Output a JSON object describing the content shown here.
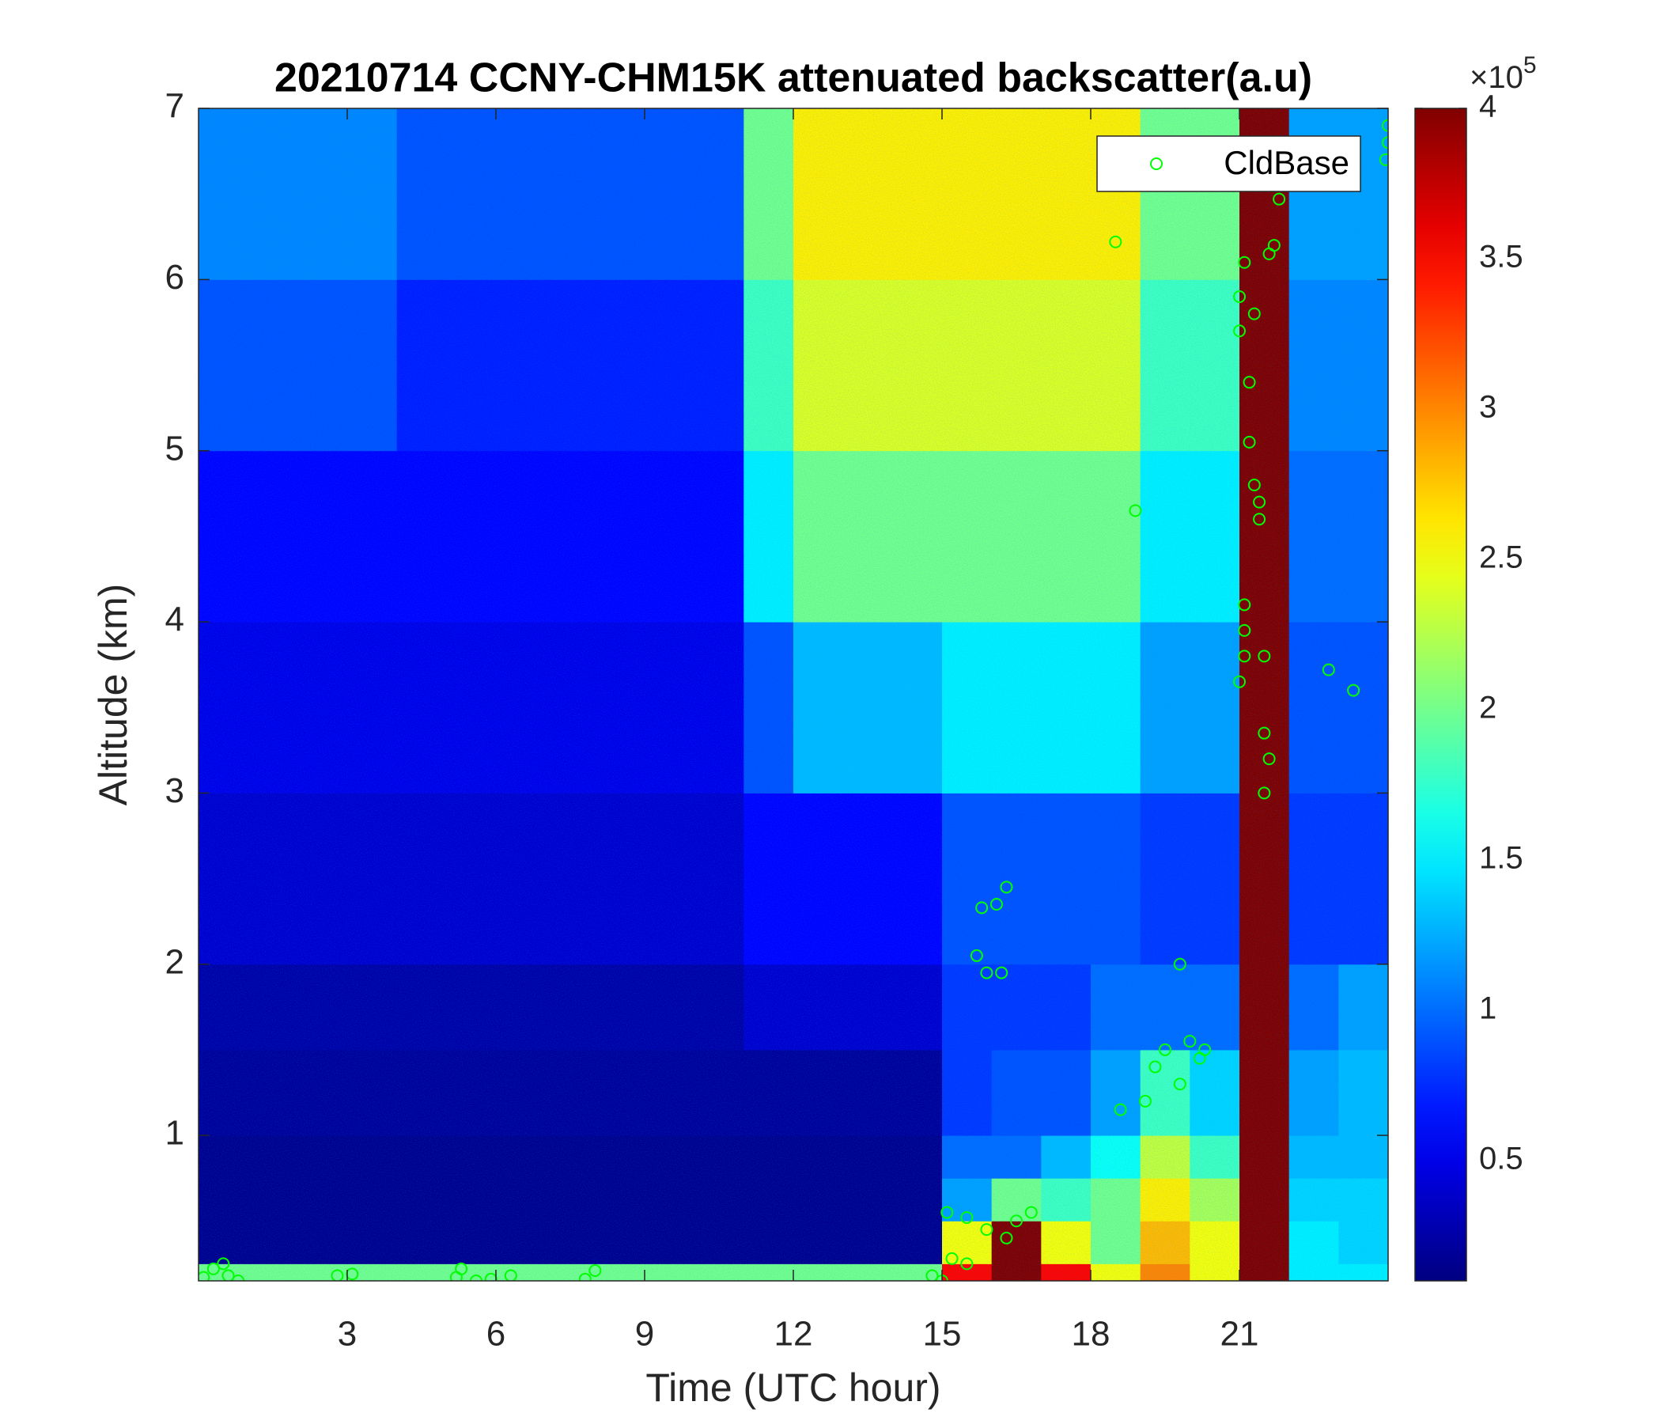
{
  "chart_data": {
    "type": "heatmap",
    "title": "20210714 CCNY-CHM15K attenuated backscatter(a.u)",
    "xlabel": "Time (UTC hour)",
    "ylabel": "Altitude (km)",
    "xlim": [
      0,
      24
    ],
    "xticks": [
      3,
      6,
      9,
      12,
      15,
      18,
      21
    ],
    "ylim": [
      0.15,
      7
    ],
    "yticks": [
      1,
      2,
      3,
      4,
      5,
      6,
      7
    ],
    "x_edges": [
      0,
      1,
      2,
      3,
      4,
      5,
      6,
      7,
      8,
      9,
      10,
      11,
      12,
      13,
      14,
      15,
      16,
      17,
      18,
      19,
      20,
      21,
      22,
      23,
      24
    ],
    "y_edges": [
      0.15,
      0.25,
      0.5,
      0.75,
      1,
      1.5,
      2,
      3,
      4,
      5,
      6,
      7
    ],
    "z": [
      [
        2,
        2,
        2,
        2,
        2,
        2,
        2,
        2,
        2,
        2,
        2,
        2,
        2,
        2,
        2,
        3.5,
        4,
        3.5,
        2.5,
        3,
        2.5,
        4,
        1.5,
        1.5
      ],
      [
        0.15,
        0.15,
        0.15,
        0.15,
        0.15,
        0.15,
        0.15,
        0.15,
        0.15,
        0.15,
        0.15,
        0.15,
        0.15,
        0.15,
        0.15,
        2.5,
        4,
        2.5,
        2,
        2.8,
        2.5,
        4,
        1.5,
        1.4
      ],
      [
        0.15,
        0.15,
        0.15,
        0.15,
        0.15,
        0.15,
        0.15,
        0.15,
        0.15,
        0.15,
        0.15,
        0.15,
        0.15,
        0.15,
        0.15,
        1.2,
        2,
        1.8,
        2,
        2.6,
        2.2,
        4,
        1.4,
        1.4
      ],
      [
        0.15,
        0.15,
        0.15,
        0.15,
        0.15,
        0.15,
        0.15,
        0.15,
        0.15,
        0.15,
        0.15,
        0.15,
        0.15,
        0.15,
        0.15,
        1,
        1,
        1.3,
        1.6,
        2.3,
        1.8,
        4,
        1.3,
        1.3
      ],
      [
        0.2,
        0.2,
        0.2,
        0.2,
        0.2,
        0.2,
        0.2,
        0.2,
        0.2,
        0.2,
        0.2,
        0.2,
        0.2,
        0.2,
        0.2,
        0.8,
        0.9,
        0.9,
        1.2,
        1.8,
        1.4,
        4,
        1.2,
        1.3
      ],
      [
        0.25,
        0.25,
        0.25,
        0.25,
        0.25,
        0.25,
        0.25,
        0.25,
        0.25,
        0.25,
        0.25,
        0.4,
        0.4,
        0.4,
        0.4,
        0.8,
        0.8,
        0.8,
        1,
        1,
        1,
        4,
        1,
        1.2
      ],
      [
        0.4,
        0.4,
        0.4,
        0.4,
        0.4,
        0.4,
        0.4,
        0.4,
        0.4,
        0.4,
        0.4,
        0.6,
        0.6,
        0.6,
        0.6,
        0.9,
        0.9,
        0.9,
        0.9,
        0.8,
        0.8,
        4,
        0.8,
        0.8
      ],
      [
        0.5,
        0.5,
        0.5,
        0.5,
        0.5,
        0.5,
        0.5,
        0.5,
        0.5,
        0.5,
        0.5,
        0.9,
        1.3,
        1.3,
        1.3,
        1.5,
        1.5,
        1.5,
        1.5,
        1.2,
        1.2,
        4,
        0.9,
        0.9
      ],
      [
        0.6,
        0.6,
        0.6,
        0.6,
        0.6,
        0.6,
        0.6,
        0.6,
        0.6,
        0.6,
        0.6,
        1.5,
        2,
        2,
        2,
        2,
        2,
        2,
        2,
        1.5,
        1.5,
        4,
        1,
        1
      ],
      [
        0.9,
        0.9,
        0.9,
        0.9,
        0.7,
        0.7,
        0.7,
        0.7,
        0.7,
        0.7,
        0.7,
        1.8,
        2.4,
        2.4,
        2.4,
        2.4,
        2.4,
        2.4,
        2.4,
        1.8,
        1.8,
        4,
        1.1,
        1.1
      ],
      [
        1.1,
        1.1,
        1.1,
        1.1,
        0.9,
        0.9,
        0.9,
        0.9,
        0.9,
        0.9,
        0.9,
        2,
        2.6,
        2.6,
        2.6,
        2.6,
        2.6,
        2.6,
        2.6,
        2,
        2,
        4,
        1.2,
        1.2
      ]
    ],
    "clim": [
      0.1,
      4
    ],
    "cticks": [
      0.5,
      1,
      1.5,
      2,
      2.5,
      3,
      3.5,
      4
    ],
    "cexp_base": "×10",
    "cexp_power": "5",
    "colormap": "jet",
    "legend": "northeast",
    "overlay": {
      "type": "scatter",
      "name": "CldBase",
      "color": "#00ff00",
      "x": [
        0.1,
        0.3,
        0.5,
        0.6,
        0.8,
        2.8,
        3.1,
        5.2,
        5.3,
        5.6,
        5.9,
        6.3,
        7.8,
        8.0,
        14.8,
        15.0,
        15.2,
        15.5,
        15.1,
        15.5,
        15.9,
        16.3,
        16.8,
        16.5,
        15.7,
        15.9,
        16.2,
        16.1,
        15.8,
        16.3,
        18.5,
        18.9,
        18.6,
        19.1,
        19.3,
        19.5,
        19.8,
        19.8,
        20.0,
        20.2,
        20.3,
        21.0,
        21.0,
        21.0,
        21.1,
        21.1,
        21.1,
        21.1,
        21.2,
        21.2,
        21.3,
        21.3,
        21.4,
        21.4,
        21.5,
        21.5,
        21.5,
        21.6,
        21.6,
        21.7,
        21.8,
        22.8,
        23.3,
        24.0,
        23.95,
        24.0
      ],
      "y": [
        0.17,
        0.22,
        0.25,
        0.18,
        0.15,
        0.18,
        0.19,
        0.17,
        0.22,
        0.15,
        0.16,
        0.18,
        0.16,
        0.21,
        0.18,
        0.15,
        0.28,
        0.25,
        0.55,
        0.52,
        0.45,
        0.4,
        0.55,
        0.5,
        2.05,
        1.95,
        1.95,
        2.35,
        2.33,
        2.45,
        6.22,
        4.65,
        1.15,
        1.2,
        1.4,
        1.5,
        1.3,
        2.0,
        1.55,
        1.45,
        1.5,
        5.9,
        5.7,
        3.65,
        6.1,
        4.1,
        3.95,
        3.8,
        5.4,
        5.05,
        5.8,
        4.8,
        4.6,
        4.7,
        3.8,
        3.35,
        3.0,
        3.2,
        6.15,
        6.2,
        6.47,
        3.72,
        3.6,
        6.9,
        6.7,
        6.8
      ]
    }
  }
}
